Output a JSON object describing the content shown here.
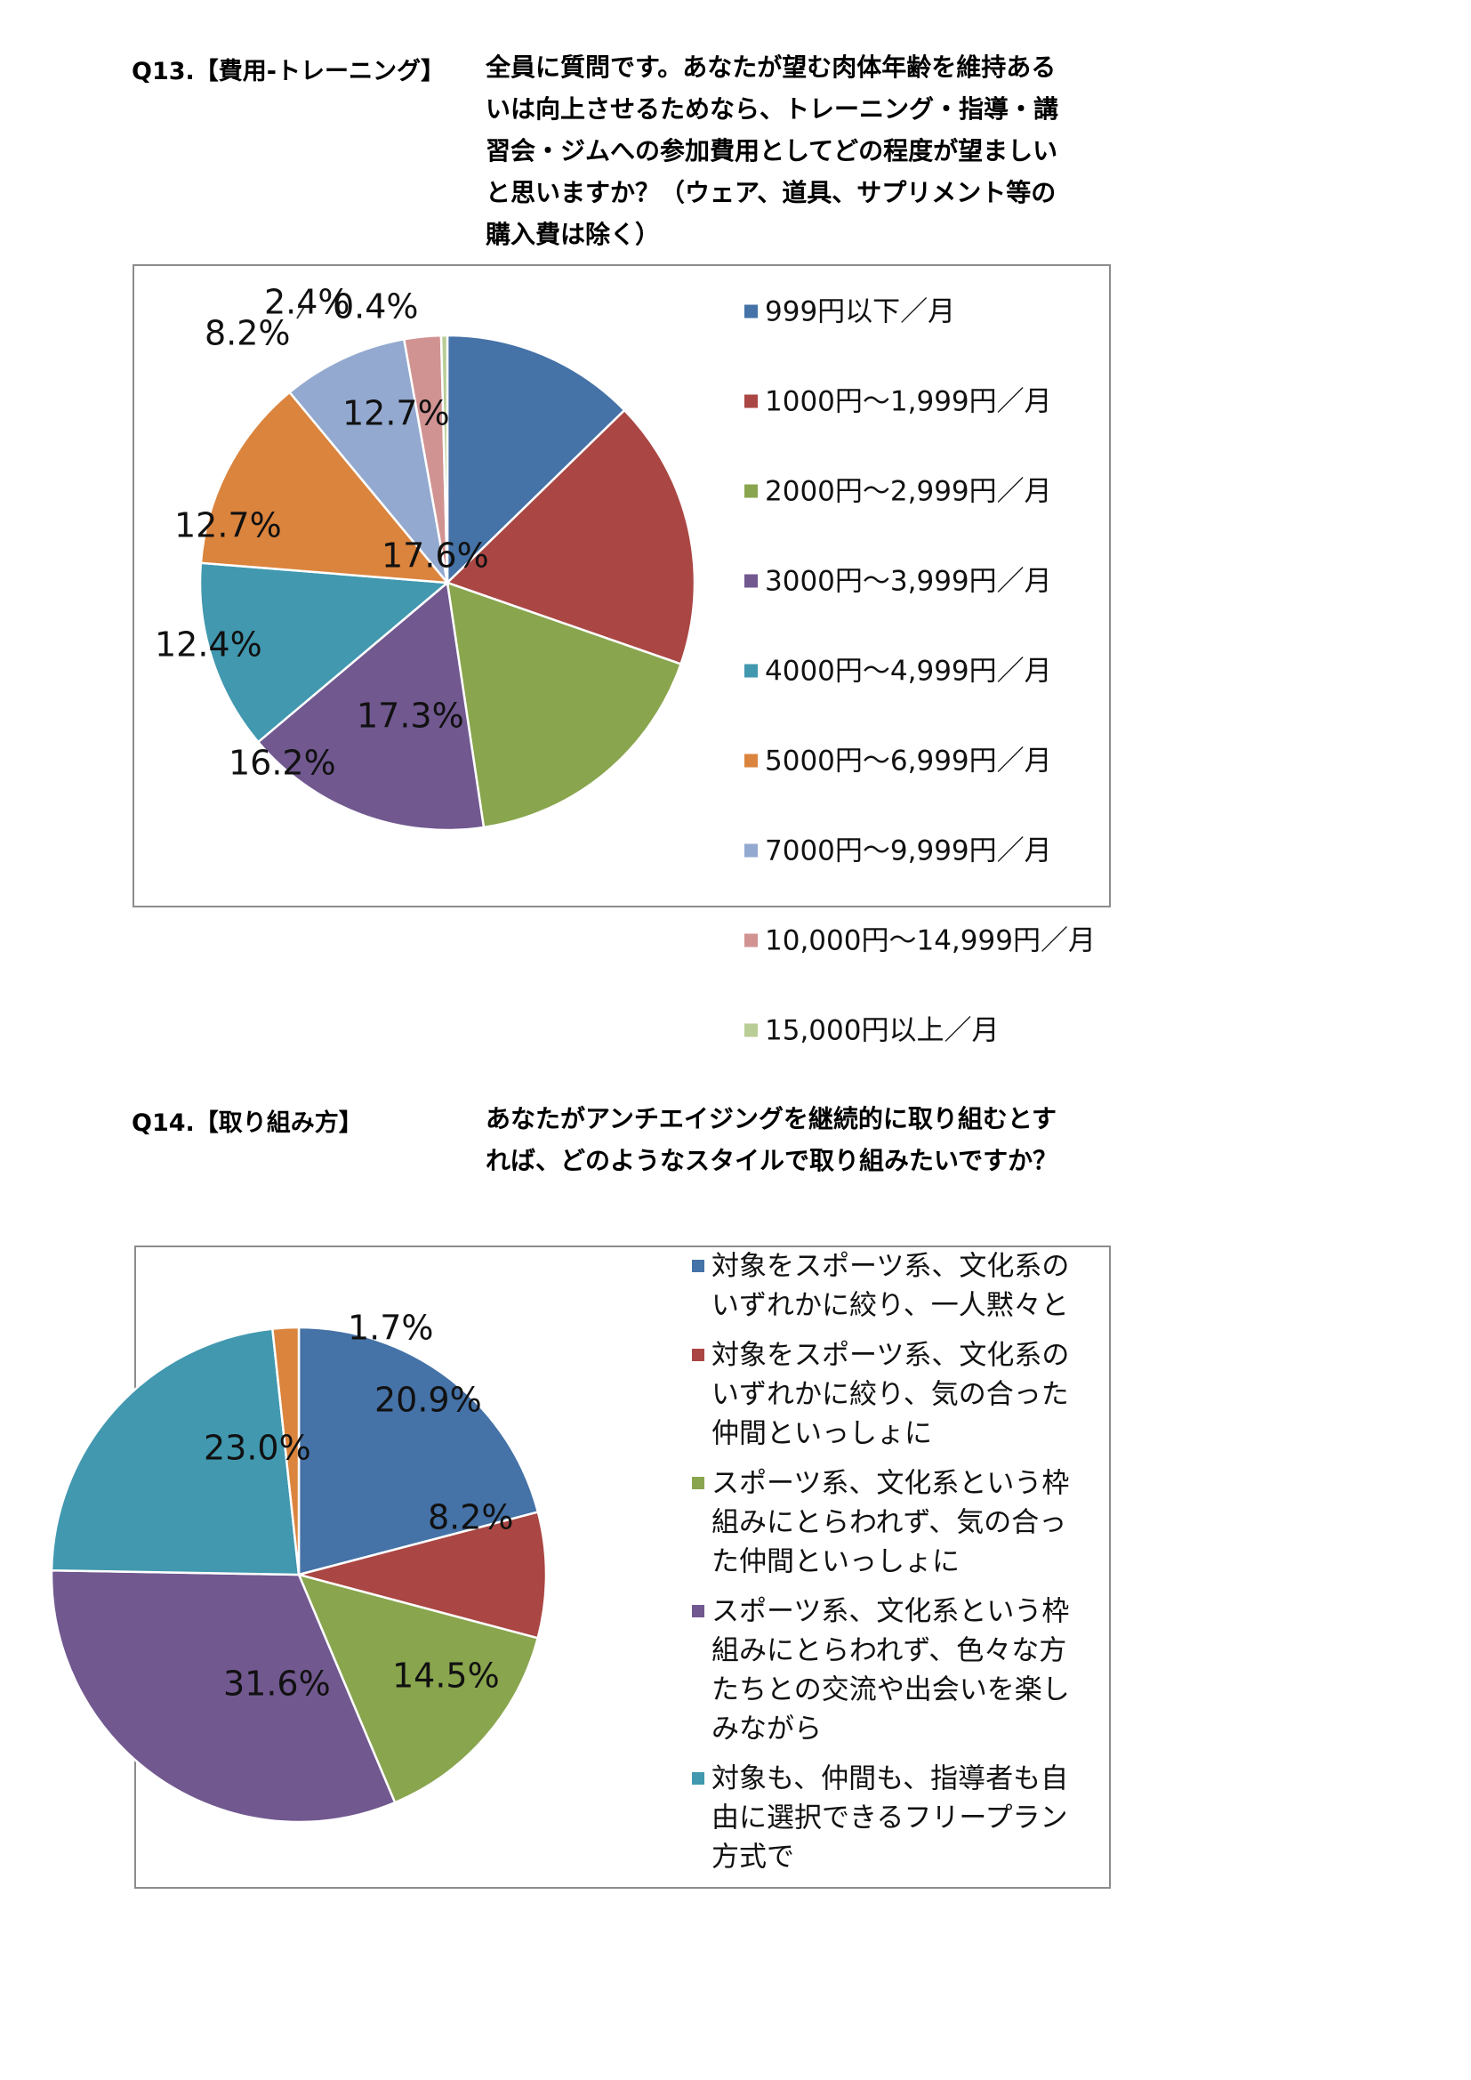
{
  "q13": {
    "label": "Q13.【費用-トレーニング】",
    "question_lines": [
      "全員に質問です。あなたが望む肉体年齢を維持ある",
      "いは向上させるためなら、トレーニング・指導・講",
      "習会・ジムへの参加費用としてどの程度が望ましい",
      "と思いますか？（ウェア、道具、サプリメント等の",
      "購入費は除く）"
    ]
  },
  "q14": {
    "label": "Q14.【取り組み方】",
    "question_lines": [
      "あなたがアンチエイジングを継続的に取り組むとす",
      "れば、どのようなスタイルで取り組みたいですか？"
    ]
  },
  "chart_data": [
    {
      "type": "pie",
      "categories": [
        "999円以下／月",
        "1000円～1,999円／月",
        "2000円～2,999円／月",
        "3000円～3,999円／月",
        "4000円～4,999円／月",
        "5000円～6,999円／月",
        "7000円～9,999円／月",
        "10,000円～14,999円／月",
        "15,000円以上／月"
      ],
      "values": [
        12.7,
        17.6,
        17.3,
        16.2,
        12.4,
        12.7,
        8.2,
        2.4,
        0.4
      ],
      "data_labels": [
        "12.7%",
        "17.6%",
        "17.3%",
        "16.2%",
        "12.4%",
        "12.7%",
        "8.2%",
        "2.4%",
        "0.4%"
      ],
      "colors": [
        "#4572a7",
        "#aa4643",
        "#89a54e",
        "#71588f",
        "#4198af",
        "#db843d",
        "#93a9cf",
        "#d19392",
        "#b9cd96"
      ],
      "legend_position": "right",
      "legend_entries": [
        [
          "999円以下／月"
        ],
        [
          "1000円～1,999円／月"
        ],
        [
          "2000円～2,999円／月"
        ],
        [
          "3000円～3,999円／月"
        ],
        [
          "4000円～4,999円／月"
        ],
        [
          "5000円～6,999円／月"
        ],
        [
          "7000円～9,999円／月"
        ],
        [
          "10,000円～14,999円／月"
        ],
        [
          "15,000円以上／月"
        ]
      ]
    },
    {
      "type": "pie",
      "categories": [
        "対象をスポーツ系、文化系のいずれかに絞り、一人黙々と",
        "対象をスポーツ系、文化系のいずれかに絞り、気の合った仲間といっしょに",
        "スポーツ系、文化系という枠組みにとらわれず、気の合った仲間といっしょに",
        "スポーツ系、文化系という枠組みにとらわれず、色々な方たちとの交流や出会いを楽しみながら",
        "対象も、仲間も、指導者も自由に選択できるフリープラン方式で",
        ""
      ],
      "values": [
        20.9,
        8.2,
        14.5,
        31.6,
        23.0,
        1.7
      ],
      "data_labels": [
        "20.9%",
        "8.2%",
        "14.5%",
        "31.6%",
        "23.0%",
        "1.7%"
      ],
      "colors": [
        "#4572a7",
        "#aa4643",
        "#89a54e",
        "#71588f",
        "#4198af",
        "#db843d"
      ],
      "legend_position": "right",
      "legend_entries": [
        [
          "対象をスポーツ系、文化系の",
          "いずれかに絞り、一人黙々と"
        ],
        [
          "対象をスポーツ系、文化系の",
          "いずれかに絞り、気の合った",
          "仲間といっしょに"
        ],
        [
          "スポーツ系、文化系という枠",
          "組みにとらわれず、気の合っ",
          "た仲間といっしょに"
        ],
        [
          "スポーツ系、文化系という枠",
          "組みにとらわれず、色々な方",
          "たちとの交流や出会いを楽し",
          "みながら"
        ],
        [
          "対象も、仲間も、指導者も自",
          "由に選択できるフリープラン",
          "方式で"
        ]
      ]
    }
  ]
}
